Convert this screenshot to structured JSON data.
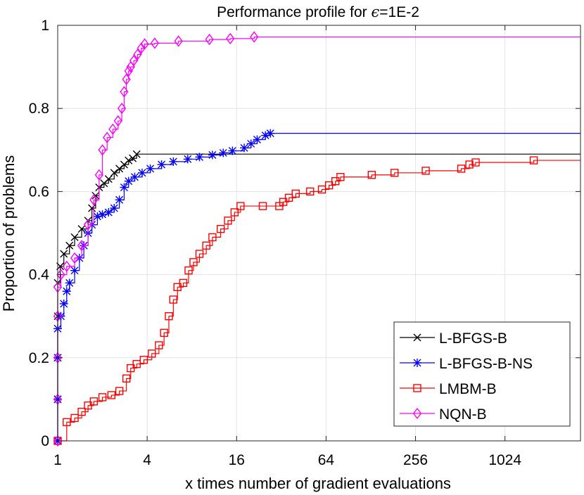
{
  "chart_data": {
    "type": "line",
    "title_prefix": "Performance profile for ",
    "title_symbol": "ϵ",
    "title_suffix": "=1E-2",
    "xlabel": "x times number of gradient evaluations",
    "ylabel": "Proportion of problems",
    "x_scale": "log2",
    "xlim": [
      1,
      3300
    ],
    "ylim": [
      0,
      1
    ],
    "x_ticks": [
      1,
      4,
      16,
      64,
      256,
      1024
    ],
    "x_tick_labels": [
      "1",
      "4",
      "16",
      "64",
      "256",
      "1024"
    ],
    "y_ticks": [
      0,
      0.2,
      0.4,
      0.6,
      0.8,
      1
    ],
    "y_tick_labels": [
      "0",
      "0.2",
      "0.4",
      "0.6",
      "0.8",
      "1"
    ],
    "grid": true,
    "legend_position": "bottom-right",
    "series": [
      {
        "name": "L-BFGS-B",
        "color": "#000000",
        "marker": "x",
        "points": [
          [
            1,
            0
          ],
          [
            1,
            0.1
          ],
          [
            1,
            0.2
          ],
          [
            1,
            0.3
          ],
          [
            1,
            0.38
          ],
          [
            1.04,
            0.42
          ],
          [
            1.1,
            0.45
          ],
          [
            1.2,
            0.47
          ],
          [
            1.3,
            0.49
          ],
          [
            1.45,
            0.51
          ],
          [
            1.6,
            0.53
          ],
          [
            1.7,
            0.56
          ],
          [
            1.8,
            0.59
          ],
          [
            1.9,
            0.61
          ],
          [
            2.05,
            0.62
          ],
          [
            2.2,
            0.63
          ],
          [
            2.4,
            0.645
          ],
          [
            2.6,
            0.655
          ],
          [
            2.8,
            0.665
          ],
          [
            3.0,
            0.675
          ],
          [
            3.2,
            0.68
          ],
          [
            3.4,
            0.69
          ]
        ],
        "final_x": 3300,
        "final_y": 0.69
      },
      {
        "name": "L-BFGS-B-NS",
        "color": "#0000FF",
        "marker": "*",
        "points": [
          [
            1,
            0
          ],
          [
            1,
            0.1
          ],
          [
            1,
            0.2
          ],
          [
            1,
            0.27
          ],
          [
            1.05,
            0.3
          ],
          [
            1.1,
            0.33
          ],
          [
            1.15,
            0.36
          ],
          [
            1.2,
            0.38
          ],
          [
            1.3,
            0.41
          ],
          [
            1.4,
            0.44
          ],
          [
            1.5,
            0.47
          ],
          [
            1.6,
            0.5
          ],
          [
            1.7,
            0.52
          ],
          [
            1.85,
            0.54
          ],
          [
            2.0,
            0.545
          ],
          [
            2.2,
            0.55
          ],
          [
            2.4,
            0.56
          ],
          [
            2.6,
            0.58
          ],
          [
            2.8,
            0.61
          ],
          [
            3.0,
            0.625
          ],
          [
            3.3,
            0.635
          ],
          [
            3.7,
            0.645
          ],
          [
            4.2,
            0.655
          ],
          [
            5,
            0.665
          ],
          [
            6,
            0.672
          ],
          [
            7.5,
            0.678
          ],
          [
            9,
            0.683
          ],
          [
            11,
            0.688
          ],
          [
            13,
            0.693
          ],
          [
            15,
            0.698
          ],
          [
            18,
            0.705
          ],
          [
            20,
            0.715
          ],
          [
            22,
            0.725
          ],
          [
            25,
            0.735
          ],
          [
            27,
            0.74
          ]
        ],
        "final_x": 3300,
        "final_y": 0.74
      },
      {
        "name": "LMBM-B",
        "color": "#FF0000",
        "marker": "square",
        "points": [
          [
            1,
            0
          ],
          [
            1.15,
            0.045
          ],
          [
            1.3,
            0.055
          ],
          [
            1.45,
            0.07
          ],
          [
            1.6,
            0.085
          ],
          [
            1.75,
            0.095
          ],
          [
            2.0,
            0.105
          ],
          [
            2.3,
            0.11
          ],
          [
            2.6,
            0.12
          ],
          [
            2.9,
            0.15
          ],
          [
            3.1,
            0.175
          ],
          [
            3.4,
            0.185
          ],
          [
            3.8,
            0.195
          ],
          [
            4.3,
            0.21
          ],
          [
            4.8,
            0.23
          ],
          [
            5.2,
            0.26
          ],
          [
            5.6,
            0.3
          ],
          [
            6.0,
            0.34
          ],
          [
            6.4,
            0.37
          ],
          [
            7.0,
            0.38
          ],
          [
            7.6,
            0.41
          ],
          [
            8.2,
            0.43
          ],
          [
            9.0,
            0.45
          ],
          [
            10,
            0.47
          ],
          [
            11,
            0.49
          ],
          [
            12.5,
            0.51
          ],
          [
            14,
            0.53
          ],
          [
            15.5,
            0.55
          ],
          [
            17,
            0.565
          ],
          [
            24,
            0.565
          ],
          [
            31,
            0.565
          ],
          [
            33,
            0.575
          ],
          [
            36,
            0.585
          ],
          [
            40,
            0.595
          ],
          [
            50,
            0.6
          ],
          [
            60,
            0.605
          ],
          [
            67,
            0.615
          ],
          [
            74,
            0.625
          ],
          [
            80,
            0.635
          ],
          [
            130,
            0.64
          ],
          [
            185,
            0.645
          ],
          [
            300,
            0.65
          ],
          [
            520,
            0.655
          ],
          [
            590,
            0.665
          ],
          [
            650,
            0.67
          ],
          [
            1600,
            0.675
          ]
        ],
        "final_x": 3300,
        "final_y": 0.675
      },
      {
        "name": "NQN-B",
        "color": "#FF00FF",
        "marker": "diamond",
        "points": [
          [
            1,
            0
          ],
          [
            1,
            0.1
          ],
          [
            1,
            0.2
          ],
          [
            1,
            0.3
          ],
          [
            1,
            0.37
          ],
          [
            1.05,
            0.4
          ],
          [
            1.15,
            0.42
          ],
          [
            1.3,
            0.44
          ],
          [
            1.45,
            0.47
          ],
          [
            1.6,
            0.52
          ],
          [
            1.75,
            0.58
          ],
          [
            1.9,
            0.64
          ],
          [
            2.0,
            0.7
          ],
          [
            2.15,
            0.73
          ],
          [
            2.35,
            0.75
          ],
          [
            2.55,
            0.77
          ],
          [
            2.7,
            0.8
          ],
          [
            2.8,
            0.84
          ],
          [
            2.9,
            0.87
          ],
          [
            3.0,
            0.89
          ],
          [
            3.1,
            0.9
          ],
          [
            3.25,
            0.915
          ],
          [
            3.45,
            0.93
          ],
          [
            3.65,
            0.945
          ],
          [
            3.85,
            0.955
          ],
          [
            4.5,
            0.957
          ],
          [
            6.5,
            0.962
          ],
          [
            10.5,
            0.966
          ],
          [
            14.5,
            0.968
          ],
          [
            21,
            0.972
          ]
        ],
        "final_x": 3300,
        "final_y": 0.972
      }
    ]
  }
}
